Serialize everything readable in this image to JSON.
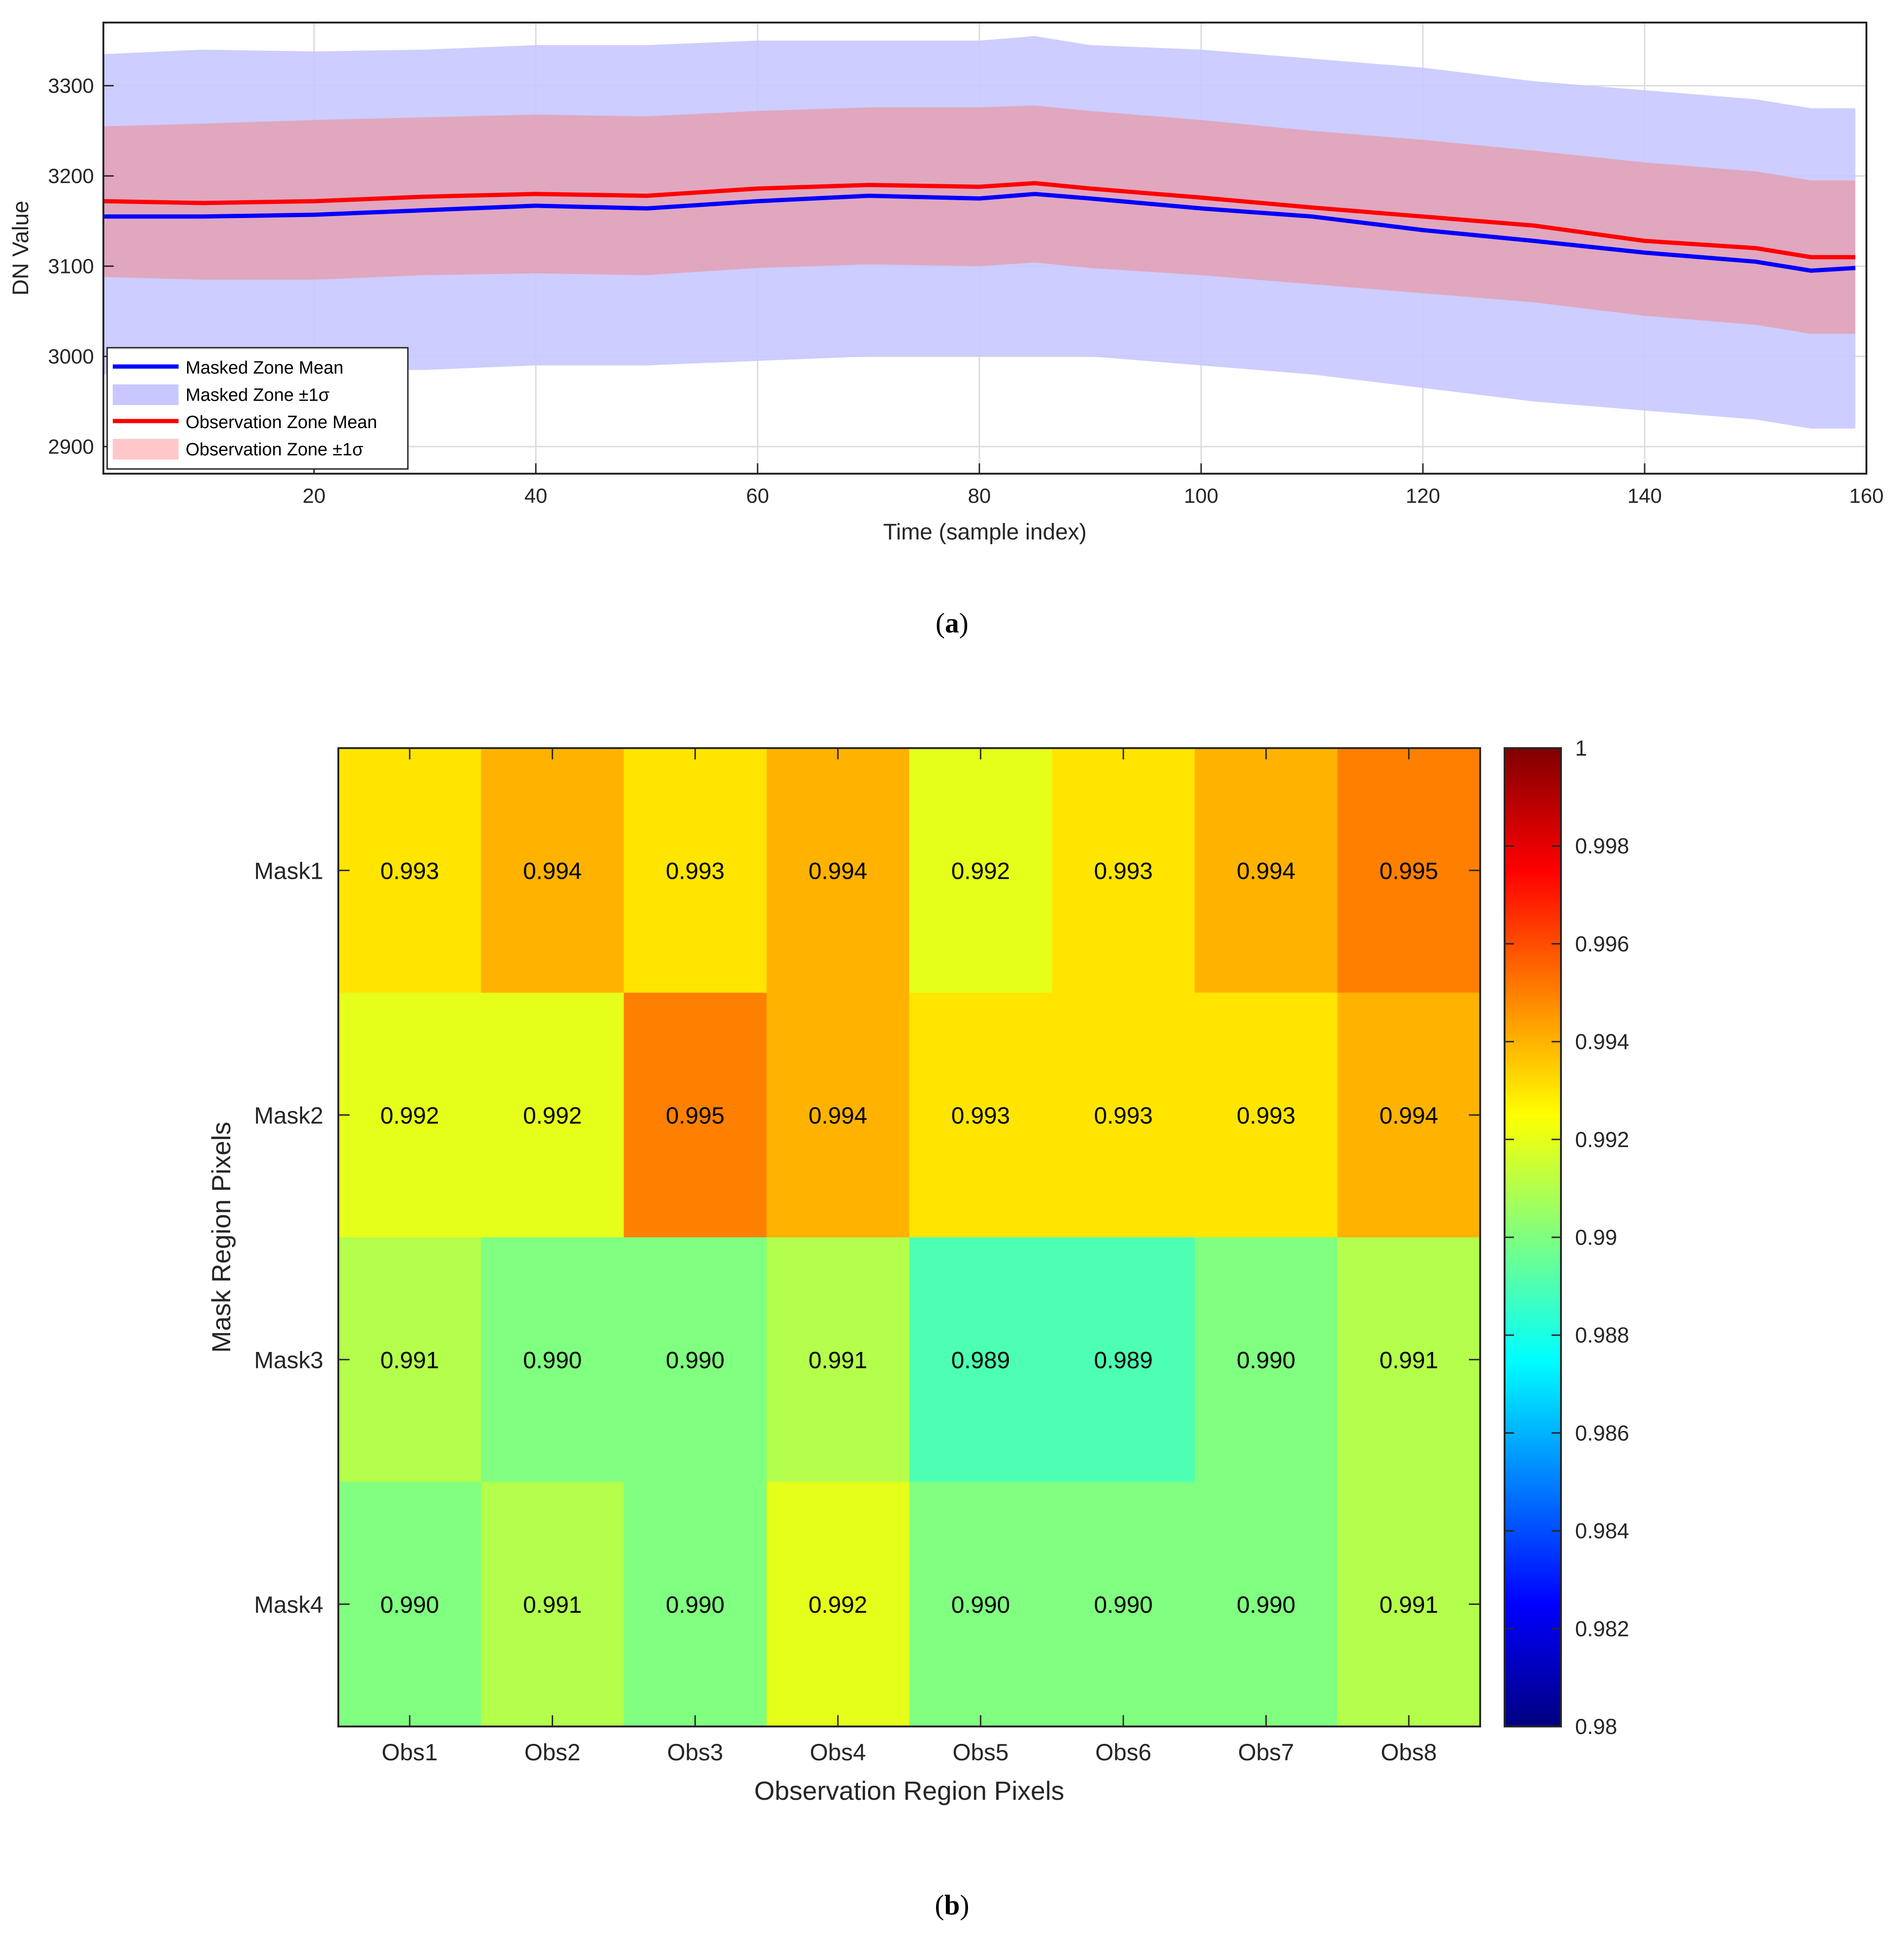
{
  "chart_data": [
    {
      "type": "line",
      "panel": "a",
      "title": "",
      "xlabel": "Time (sample index)",
      "ylabel": "DN Value",
      "xlim": [
        1,
        160
      ],
      "ylim": [
        2870,
        3370
      ],
      "xticks": [
        20,
        40,
        60,
        80,
        100,
        120,
        140,
        160
      ],
      "yticks": [
        2900,
        3000,
        3100,
        3200,
        3300
      ],
      "xtick_labels": [
        "20",
        "40",
        "60",
        "80",
        "100",
        "120",
        "140",
        "160"
      ],
      "ytick_labels": [
        "2900",
        "3000",
        "3100",
        "3200",
        "3300"
      ],
      "grid": true,
      "legend_position": "bottom-left",
      "legend": [
        "Masked Zone Mean",
        "Masked Zone ±1σ",
        "Observation Zone Mean",
        "Observation Zone ±1σ"
      ],
      "series": [
        {
          "name": "Masked Zone Mean",
          "color": "#0000ff",
          "x": [
            1,
            10,
            20,
            30,
            40,
            50,
            60,
            70,
            80,
            85,
            90,
            100,
            110,
            120,
            130,
            140,
            150,
            155,
            159
          ],
          "values": [
            3155,
            3155,
            3157,
            3162,
            3167,
            3164,
            3172,
            3178,
            3175,
            3180,
            3175,
            3164,
            3155,
            3140,
            3128,
            3115,
            3105,
            3095,
            3098
          ]
        },
        {
          "name": "Masked Zone ±1σ",
          "color": "#c8c8ff",
          "x": [
            1,
            10,
            20,
            30,
            40,
            50,
            60,
            70,
            80,
            85,
            90,
            100,
            110,
            120,
            130,
            140,
            150,
            155,
            159
          ],
          "upper": [
            3335,
            3340,
            3338,
            3340,
            3345,
            3345,
            3350,
            3350,
            3350,
            3355,
            3345,
            3340,
            3330,
            3320,
            3305,
            3295,
            3285,
            3275,
            3275
          ],
          "lower": [
            2980,
            2982,
            2985,
            2985,
            2990,
            2990,
            2995,
            3000,
            3000,
            3000,
            3000,
            2990,
            2980,
            2965,
            2950,
            2940,
            2930,
            2920,
            2920
          ]
        },
        {
          "name": "Observation Zone Mean",
          "color": "#ff0000",
          "x": [
            1,
            10,
            20,
            30,
            40,
            50,
            60,
            70,
            80,
            85,
            90,
            100,
            110,
            120,
            130,
            140,
            150,
            155,
            159
          ],
          "values": [
            3172,
            3170,
            3172,
            3177,
            3180,
            3178,
            3186,
            3190,
            3188,
            3192,
            3186,
            3176,
            3165,
            3155,
            3145,
            3128,
            3120,
            3110,
            3110
          ]
        },
        {
          "name": "Observation Zone ±1σ",
          "color": "#ffc8c8",
          "x": [
            1,
            10,
            20,
            30,
            40,
            50,
            60,
            70,
            80,
            85,
            90,
            100,
            110,
            120,
            130,
            140,
            150,
            155,
            159
          ],
          "upper": [
            3255,
            3258,
            3262,
            3265,
            3268,
            3266,
            3272,
            3276,
            3276,
            3278,
            3272,
            3262,
            3250,
            3240,
            3228,
            3215,
            3205,
            3195,
            3195
          ],
          "lower": [
            3088,
            3085,
            3085,
            3090,
            3092,
            3090,
            3098,
            3102,
            3100,
            3104,
            3098,
            3090,
            3080,
            3070,
            3060,
            3045,
            3035,
            3025,
            3025
          ]
        }
      ]
    },
    {
      "type": "heatmap",
      "panel": "b",
      "title": "",
      "xlabel": "Observation Region Pixels",
      "ylabel": "Mask Region Pixels",
      "x_categories": [
        "Obs1",
        "Obs2",
        "Obs3",
        "Obs4",
        "Obs5",
        "Obs6",
        "Obs7",
        "Obs8"
      ],
      "y_categories": [
        "Mask1",
        "Mask2",
        "Mask3",
        "Mask4"
      ],
      "values": [
        [
          0.993,
          0.994,
          0.993,
          0.994,
          0.992,
          0.993,
          0.994,
          0.995
        ],
        [
          0.992,
          0.992,
          0.995,
          0.994,
          0.993,
          0.993,
          0.993,
          0.994
        ],
        [
          0.991,
          0.99,
          0.99,
          0.991,
          0.989,
          0.989,
          0.99,
          0.991
        ],
        [
          0.99,
          0.991,
          0.99,
          0.992,
          0.99,
          0.99,
          0.99,
          0.991
        ]
      ],
      "value_labels": [
        [
          "0.993",
          "0.994",
          "0.993",
          "0.994",
          "0.992",
          "0.993",
          "0.994",
          "0.995"
        ],
        [
          "0.992",
          "0.992",
          "0.995",
          "0.994",
          "0.993",
          "0.993",
          "0.993",
          "0.994"
        ],
        [
          "0.991",
          "0.990",
          "0.990",
          "0.991",
          "0.989",
          "0.989",
          "0.990",
          "0.991"
        ],
        [
          "0.990",
          "0.991",
          "0.990",
          "0.992",
          "0.990",
          "0.990",
          "0.990",
          "0.991"
        ]
      ],
      "colormap": "jet",
      "clim": [
        0.98,
        1
      ],
      "colorbar_ticks": [
        0.98,
        0.982,
        0.984,
        0.986,
        0.988,
        0.99,
        0.992,
        0.994,
        0.996,
        0.998,
        1
      ],
      "colorbar_tick_labels": [
        "0.98",
        "0.982",
        "0.984",
        "0.986",
        "0.988",
        "0.99",
        "0.992",
        "0.994",
        "0.996",
        "0.998",
        "1"
      ]
    }
  ],
  "panel_labels": {
    "a": "a",
    "b": "b"
  }
}
